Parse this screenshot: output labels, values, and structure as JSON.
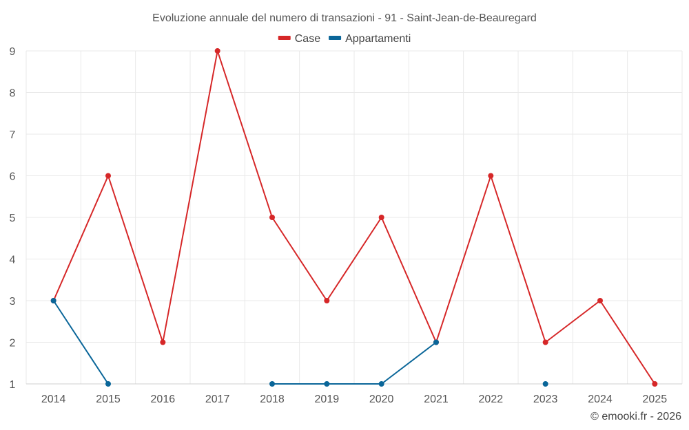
{
  "chart_data": {
    "type": "line",
    "title": "Evoluzione annuale del numero di transazioni - 91 - Saint-Jean-de-Beauregard",
    "categories": [
      "2014",
      "2015",
      "2016",
      "2017",
      "2018",
      "2019",
      "2020",
      "2021",
      "2022",
      "2023",
      "2024",
      "2025"
    ],
    "series": [
      {
        "name": "Case",
        "color": "#d62728",
        "values": [
          3,
          6,
          2,
          9,
          5,
          3,
          5,
          2,
          6,
          2,
          3,
          1
        ]
      },
      {
        "name": "Appartamenti",
        "color": "#0a6699",
        "values": [
          3,
          1,
          null,
          null,
          1,
          1,
          1,
          2,
          null,
          1,
          null,
          null
        ]
      }
    ],
    "y_ticks": [
      1,
      2,
      3,
      4,
      5,
      6,
      7,
      8,
      9
    ],
    "ylim": [
      1,
      9
    ],
    "xlabel": "",
    "ylabel": "",
    "grid": true,
    "legend_position": "top-center"
  },
  "credit": "© emooki.fr - 2026"
}
